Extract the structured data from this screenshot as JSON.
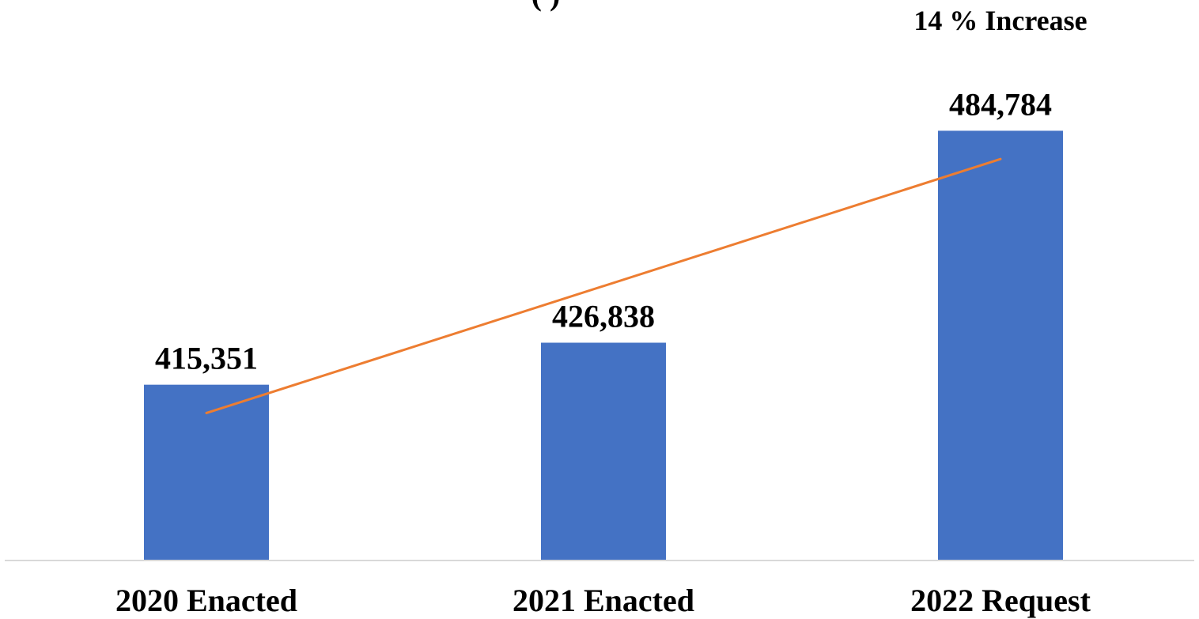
{
  "chart_data": {
    "type": "bar",
    "title_fragment": "(               )",
    "annotation": "14 % Increase",
    "categories": [
      "2020 Enacted",
      "2021 Enacted",
      "2022 Request"
    ],
    "values": [
      415351,
      426838,
      484784
    ],
    "data_labels": [
      "415,351",
      "426,838",
      "484,784"
    ],
    "trendline": true,
    "ylim": [
      350000,
      500000
    ],
    "grid": false,
    "colors": {
      "bar": "#4472C4",
      "trendline": "#ED7D31",
      "axis": "#D9D9D9"
    }
  }
}
